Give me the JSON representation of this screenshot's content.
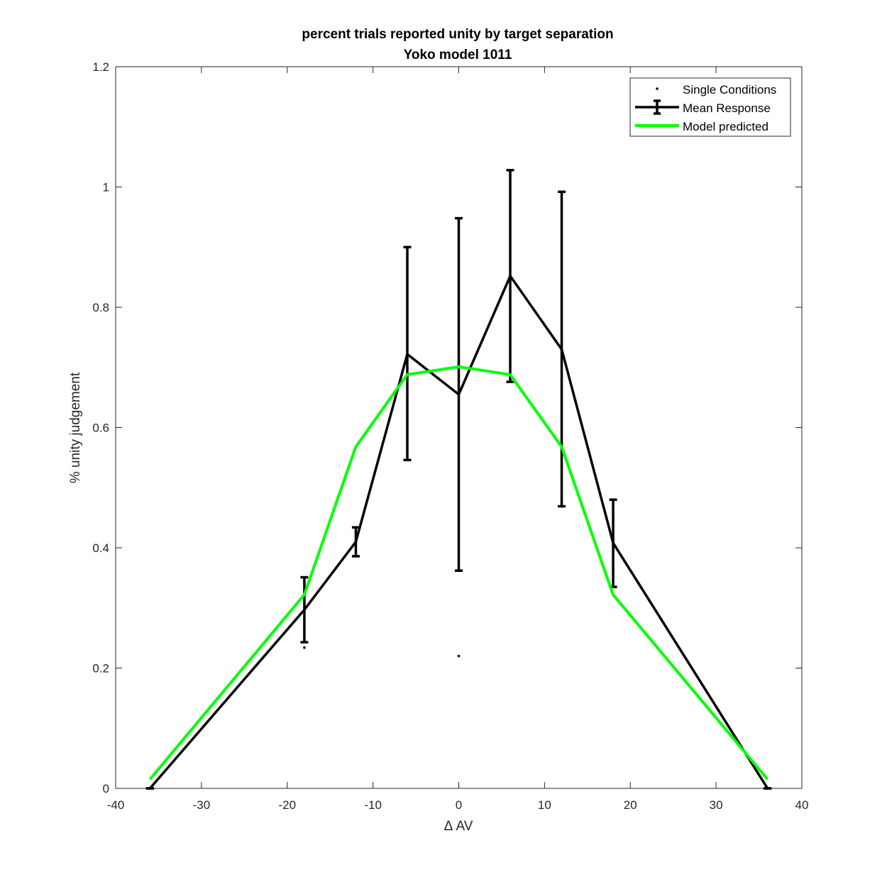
{
  "chart_data": {
    "type": "line",
    "title": "percent trials reported unity by target separation",
    "subtitle": "Yoko model 1011",
    "xlabel": "Δ AV",
    "ylabel": "% unity judgement",
    "xlim": [
      -40,
      40
    ],
    "ylim": [
      0,
      1.2
    ],
    "xticks": [
      -40,
      -30,
      -20,
      -10,
      0,
      10,
      20,
      30,
      40
    ],
    "xtick_labels": [
      "-40",
      "-30",
      "-20",
      "-10",
      "0",
      "10",
      "20",
      "30",
      "40"
    ],
    "yticks": [
      0,
      0.2,
      0.4,
      0.6,
      0.8,
      1,
      1.2
    ],
    "ytick_labels": [
      "0",
      "0.2",
      "0.4",
      "0.6",
      "0.8",
      "1",
      "1.2"
    ],
    "grid": false,
    "legend_position": "top-right",
    "series": [
      {
        "name": "Single Conditions",
        "kind": "scatter",
        "color": "#000000",
        "x": [
          -36,
          -18,
          -12,
          -6,
          0,
          6,
          12,
          18,
          36
        ],
        "y": [
          0,
          0.234,
          0.41,
          0.722,
          0.22,
          0.852,
          0.73,
          0.408,
          0
        ]
      },
      {
        "name": "Mean Response",
        "kind": "errorbar",
        "color": "#000000",
        "x": [
          -36,
          -18,
          -12,
          -6,
          0,
          6,
          12,
          18,
          36
        ],
        "y": [
          0,
          0.297,
          0.41,
          0.722,
          0.655,
          0.852,
          0.73,
          0.408,
          0
        ],
        "err_low": [
          0,
          0.243,
          0.386,
          0.546,
          0.362,
          0.676,
          0.469,
          0.335,
          0
        ],
        "err_high": [
          0,
          0.351,
          0.434,
          0.9,
          0.948,
          1.028,
          0.992,
          0.48,
          0
        ]
      },
      {
        "name": "Model predicted",
        "kind": "line",
        "color": "#00ff00",
        "x": [
          -36,
          -18,
          -12,
          -6,
          0,
          6,
          12,
          18,
          36
        ],
        "y": [
          0.015,
          0.322,
          0.568,
          0.688,
          0.701,
          0.688,
          0.568,
          0.322,
          0.015
        ]
      }
    ]
  },
  "colors": {
    "axis": "#262626",
    "mean_response": "#000000",
    "model_predicted": "#00ff00"
  }
}
